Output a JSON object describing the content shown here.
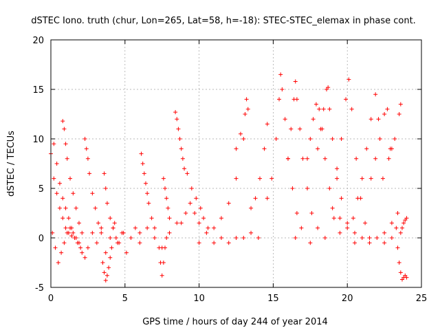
{
  "chart_data": {
    "type": "scatter",
    "title": "dSTEC Iono. truth (chur, Lon=265, Lat=58, h=-18): STEC-STEC_elemax in phase cont.",
    "xlabel": "GPS time / hours of day 244 of year 2014",
    "ylabel": "dSTEC  / TECUs",
    "xlim": [
      0,
      25
    ],
    "ylim": [
      -5,
      20
    ],
    "xticks": [
      0,
      5,
      10,
      15,
      20,
      25
    ],
    "yticks": [
      -5,
      0,
      5,
      10,
      15,
      20
    ],
    "grid": true,
    "marker": "plus",
    "color": "#ff0000",
    "series": [
      {
        "x": [
          0.0,
          0.2,
          0.4,
          0.6,
          0.8,
          1.0,
          1.2,
          1.4,
          1.6,
          1.8,
          2.0
        ],
        "y": [
          8.5,
          6.0,
          4.5,
          3.0,
          2.0,
          1.0,
          0.5,
          0.2,
          0.0,
          -0.5,
          -1.0
        ]
      },
      {
        "x": [
          0.1,
          0.3,
          0.5,
          0.7,
          0.9,
          1.1,
          1.3,
          1.5,
          1.7,
          1.9,
          2.1,
          2.3
        ],
        "y": [
          0.5,
          -1.0,
          -2.5,
          -1.5,
          -0.5,
          0.5,
          1.0,
          0.5,
          0.0,
          -0.5,
          -1.5,
          -2.0
        ]
      },
      {
        "x": [
          0.8,
          0.9,
          1.0,
          1.1,
          1.3,
          1.5,
          1.7,
          1.9,
          2.1
        ],
        "y": [
          11.8,
          11.0,
          9.5,
          8.0,
          6.0,
          4.5,
          3.0,
          1.5,
          0.5
        ]
      },
      {
        "x": [
          0.2,
          0.4,
          0.6,
          0.8,
          1.0,
          1.2,
          1.4
        ],
        "y": [
          9.5,
          7.5,
          5.5,
          4.0,
          3.0,
          2.0,
          1.0
        ]
      },
      {
        "x": [
          2.3,
          2.4,
          2.5,
          2.6,
          2.8,
          3.0,
          3.2,
          3.4
        ],
        "y": [
          10.0,
          9.0,
          8.0,
          6.5,
          4.5,
          3.0,
          1.5,
          0.5
        ]
      },
      {
        "x": [
          2.5,
          2.8,
          3.1,
          3.4,
          3.7,
          4.0,
          4.3,
          4.6,
          4.9
        ],
        "y": [
          -1.0,
          0.5,
          -0.5,
          1.0,
          -1.5,
          0.0,
          1.5,
          -0.5,
          0.5
        ]
      },
      {
        "x": [
          3.5,
          3.6,
          3.7,
          3.8,
          3.9,
          4.0,
          4.1
        ],
        "y": [
          -2.5,
          -3.5,
          -4.3,
          -3.8,
          -3.0,
          -2.0,
          -1.0
        ]
      },
      {
        "x": [
          3.6,
          3.7,
          3.8,
          4.0,
          4.2,
          4.4
        ],
        "y": [
          6.5,
          5.0,
          3.5,
          2.0,
          1.0,
          0.0
        ]
      },
      {
        "x": [
          4.2,
          4.5,
          4.8,
          5.1,
          5.4,
          5.7,
          6.0
        ],
        "y": [
          1.0,
          -0.5,
          0.5,
          -1.5,
          0.0,
          1.0,
          -0.5
        ]
      },
      {
        "x": [
          6.1,
          6.2,
          6.3,
          6.4,
          6.5,
          6.6,
          6.8,
          7.0
        ],
        "y": [
          8.5,
          7.5,
          6.5,
          5.5,
          4.5,
          3.5,
          2.0,
          1.0
        ]
      },
      {
        "x": [
          6.0,
          6.5,
          7.0,
          7.5,
          8.0,
          8.5
        ],
        "y": [
          0.5,
          1.0,
          0.0,
          -1.0,
          0.5,
          1.5
        ]
      },
      {
        "x": [
          7.3,
          7.4,
          7.5,
          7.6,
          7.7,
          7.8
        ],
        "y": [
          -1.0,
          -2.5,
          -3.8,
          -2.5,
          -1.0,
          0.0
        ]
      },
      {
        "x": [
          7.6,
          7.7,
          7.8,
          7.9,
          8.0
        ],
        "y": [
          6.0,
          5.0,
          4.0,
          3.0,
          2.0
        ]
      },
      {
        "x": [
          8.4,
          8.5,
          8.6,
          8.7,
          8.8,
          8.9,
          9.0,
          9.2,
          9.5,
          9.8,
          10.1
        ],
        "y": [
          12.7,
          12.0,
          11.0,
          10.0,
          9.0,
          8.0,
          7.0,
          6.5,
          5.0,
          4.0,
          3.0
        ]
      },
      {
        "x": [
          8.8,
          9.1,
          9.4,
          9.7,
          10.0,
          10.3,
          10.6
        ],
        "y": [
          1.5,
          2.5,
          3.5,
          2.5,
          1.5,
          2.0,
          1.0
        ]
      },
      {
        "x": [
          10.0,
          10.5,
          11.0,
          11.5,
          12.0,
          12.5,
          13.0,
          13.2
        ],
        "y": [
          -0.5,
          0.5,
          1.0,
          2.0,
          3.5,
          6.0,
          10.0,
          14.0
        ]
      },
      {
        "x": [
          11.0,
          11.5,
          12.0,
          12.5,
          13.0,
          13.5,
          14.0
        ],
        "y": [
          -0.5,
          0.0,
          -0.5,
          0.0,
          0.0,
          0.5,
          0.0
        ]
      },
      {
        "x": [
          12.5,
          12.8,
          13.1,
          13.3
        ],
        "y": [
          9.0,
          10.5,
          12.5,
          13.0
        ]
      },
      {
        "x": [
          13.5,
          13.8,
          14.1,
          14.4,
          14.6
        ],
        "y": [
          3.0,
          4.0,
          6.0,
          9.0,
          11.5
        ]
      },
      {
        "x": [
          14.6,
          14.9,
          15.2,
          15.4,
          15.5,
          15.6,
          15.8,
          16.0,
          16.3,
          16.6,
          16.9
        ],
        "y": [
          4.0,
          6.0,
          10.0,
          14.0,
          16.5,
          15.0,
          12.0,
          8.0,
          5.0,
          2.5,
          1.0
        ]
      },
      {
        "x": [
          16.0,
          16.2,
          16.4,
          16.5,
          16.6,
          16.8,
          17.0,
          17.3,
          17.6,
          18.0
        ],
        "y": [
          8.0,
          11.0,
          14.0,
          15.8,
          14.0,
          11.0,
          8.0,
          5.0,
          2.5,
          1.0
        ]
      },
      {
        "x": [
          17.3,
          17.5,
          17.7,
          17.9,
          18.1,
          18.3,
          18.5,
          18.8,
          19.1
        ],
        "y": [
          8.0,
          10.0,
          12.0,
          13.5,
          13.0,
          11.0,
          8.0,
          5.0,
          2.0
        ]
      },
      {
        "x": [
          18.0,
          18.2,
          18.4,
          18.6,
          18.7,
          18.8,
          19.0,
          19.3,
          19.6,
          20.0
        ],
        "y": [
          9.0,
          11.0,
          13.0,
          15.0,
          15.2,
          13.0,
          10.0,
          7.0,
          4.0,
          1.5
        ]
      },
      {
        "x": [
          19.0,
          19.3,
          19.6,
          19.9,
          20.1,
          20.3,
          20.6,
          20.9,
          21.2
        ],
        "y": [
          3.0,
          6.0,
          10.0,
          14.0,
          16.0,
          13.0,
          8.0,
          4.0,
          1.5
        ]
      },
      {
        "x": [
          20.4,
          20.7,
          21.0,
          21.3,
          21.6,
          21.9,
          22.1,
          22.4
        ],
        "y": [
          2.0,
          4.0,
          6.0,
          9.0,
          12.0,
          14.5,
          12.0,
          6.0
        ]
      },
      {
        "x": [
          21.6,
          21.9,
          22.2,
          22.5,
          22.7,
          22.9
        ],
        "y": [
          6.0,
          8.0,
          10.0,
          12.5,
          13.0,
          9.0
        ]
      },
      {
        "x": [
          22.8,
          23.0,
          23.2,
          23.5,
          23.6
        ],
        "y": [
          8.0,
          9.0,
          10.0,
          12.5,
          13.5
        ]
      },
      {
        "x": [
          16.5,
          17.5,
          18.5,
          19.5,
          20.5,
          21.5,
          22.5,
          23.0
        ],
        "y": [
          0.0,
          -0.5,
          0.0,
          0.5,
          -0.5,
          0.0,
          -0.5,
          0.0
        ]
      },
      {
        "x": [
          19.5,
          20.0,
          20.5,
          21.0,
          21.5,
          22.0,
          22.5,
          23.0,
          23.4
        ],
        "y": [
          2.0,
          1.0,
          0.5,
          0.0,
          -0.5,
          0.0,
          0.5,
          1.5,
          2.5
        ]
      },
      {
        "x": [
          23.3,
          23.4,
          23.5,
          23.6,
          23.7,
          23.8,
          23.9,
          24.0
        ],
        "y": [
          1.0,
          -1.0,
          -2.5,
          -3.5,
          -4.2,
          -4.0,
          -3.8,
          -4.0
        ]
      },
      {
        "x": [
          23.6,
          23.7,
          23.8,
          23.9,
          24.0
        ],
        "y": [
          0.5,
          1.0,
          1.5,
          1.8,
          2.0
        ]
      }
    ]
  }
}
